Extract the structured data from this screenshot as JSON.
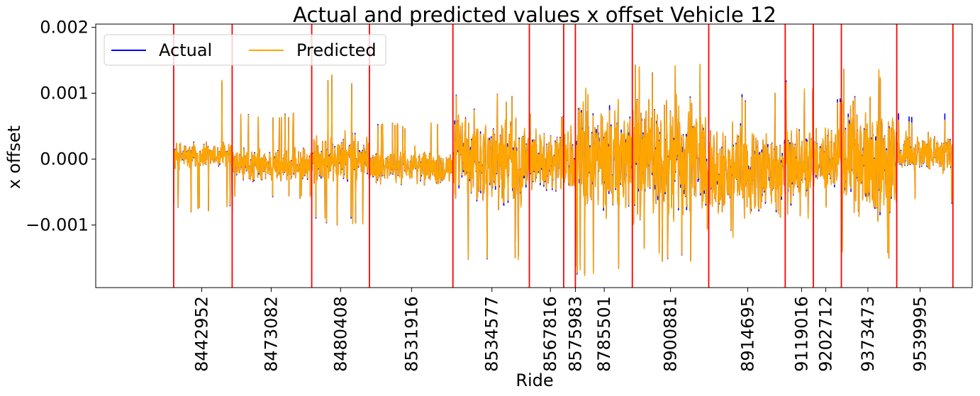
{
  "chart_data": {
    "type": "line",
    "title": "Actual and predicted values x offset Vehicle 12",
    "xlabel": "Ride",
    "ylabel": "x offset",
    "ylim": [
      -0.00195,
      0.00205
    ],
    "yticks": [
      {
        "value": 0.002,
        "label": "0.002"
      },
      {
        "value": 0.001,
        "label": "0.001"
      },
      {
        "value": 0.0,
        "label": "0.000"
      },
      {
        "value": -0.001,
        "label": "−0.001"
      }
    ],
    "xlim": [
      0,
      1000
    ],
    "xticks": [
      {
        "value": 85,
        "label": "8442952"
      },
      {
        "value": 174,
        "label": "8473082"
      },
      {
        "value": 263,
        "label": "8480408"
      },
      {
        "value": 354,
        "label": "8531916"
      },
      {
        "value": 457,
        "label": "8534577"
      },
      {
        "value": 532,
        "label": "8567816"
      },
      {
        "value": 564,
        "label": "8575983"
      },
      {
        "value": 601,
        "label": "8785501"
      },
      {
        "value": 686,
        "label": "8900881"
      },
      {
        "value": 785,
        "label": "8914695"
      },
      {
        "value": 854,
        "label": "9119016"
      },
      {
        "value": 885,
        "label": "9202712"
      },
      {
        "value": 939,
        "label": "9373473"
      },
      {
        "value": 1006,
        "label": "9539995"
      }
    ],
    "ride_boundaries": [
      49,
      124,
      226,
      300,
      407,
      505,
      549,
      564,
      637,
      735,
      833,
      869,
      905,
      976,
      1048
    ],
    "boundary_color": "#ff0000",
    "legend": {
      "placement": "top-left",
      "columns": 2
    },
    "series": [
      {
        "name": "Actual",
        "color": "#0000ff",
        "segments": [
          {
            "start": 49,
            "end": 124,
            "base": 5e-05,
            "amp": 0.00025,
            "spike_max": 0.0013,
            "spike_min": -0.0008
          },
          {
            "start": 124,
            "end": 226,
            "base": -0.0001,
            "amp": 0.0003,
            "spike_max": 0.0007,
            "spike_min": -0.0006
          },
          {
            "start": 226,
            "end": 300,
            "base": 0.0,
            "amp": 0.00045,
            "spike_max": 0.0013,
            "spike_min": -0.001
          },
          {
            "start": 300,
            "end": 407,
            "base": -0.0001,
            "amp": 0.0003,
            "spike_max": 0.00055,
            "spike_min": -0.0004
          },
          {
            "start": 407,
            "end": 505,
            "base": 0.0,
            "amp": 0.0008,
            "spike_max": 0.001,
            "spike_min": -0.0016
          },
          {
            "start": 505,
            "end": 549,
            "base": 0.0,
            "amp": 0.0005,
            "spike_max": 0.0007,
            "spike_min": -0.0005
          },
          {
            "start": 549,
            "end": 564,
            "base": 0.0,
            "amp": 0.0006,
            "spike_max": 0.0007,
            "spike_min": -0.0004
          },
          {
            "start": 564,
            "end": 637,
            "base": 0.0,
            "amp": 0.001,
            "spike_max": 0.0011,
            "spike_min": -0.0018
          },
          {
            "start": 637,
            "end": 735,
            "base": 0.0,
            "amp": 0.0011,
            "spike_max": 0.00155,
            "spike_min": -0.00155
          },
          {
            "start": 735,
            "end": 833,
            "base": -0.0002,
            "amp": 0.0008,
            "spike_max": 0.001,
            "spike_min": -0.0012
          },
          {
            "start": 833,
            "end": 869,
            "base": -0.0001,
            "amp": 0.0007,
            "spike_max": 0.0012,
            "spike_min": -0.0009
          },
          {
            "start": 869,
            "end": 905,
            "base": 0.0,
            "amp": 0.0006,
            "spike_max": 0.00095,
            "spike_min": -0.0008
          },
          {
            "start": 905,
            "end": 976,
            "base": 0.0,
            "amp": 0.0011,
            "spike_max": 0.0014,
            "spike_min": -0.0015
          },
          {
            "start": 976,
            "end": 1048,
            "base": 0.0001,
            "amp": 0.00035,
            "spike_max": 0.0007,
            "spike_min": -0.0007
          }
        ]
      },
      {
        "name": "Predicted",
        "color": "#ffa500",
        "segments": [
          {
            "start": 49,
            "end": 124,
            "base": 5e-05,
            "amp": 0.00025,
            "spike_max": 0.00135,
            "spike_min": -0.0008
          },
          {
            "start": 124,
            "end": 226,
            "base": -0.0001,
            "amp": 0.0003,
            "spike_max": 0.0007,
            "spike_min": -0.0006
          },
          {
            "start": 226,
            "end": 300,
            "base": 0.0,
            "amp": 0.00045,
            "spike_max": 0.0013,
            "spike_min": -0.001
          },
          {
            "start": 300,
            "end": 407,
            "base": -0.0001,
            "amp": 0.0003,
            "spike_max": 0.00055,
            "spike_min": -0.0004
          },
          {
            "start": 407,
            "end": 505,
            "base": 0.0,
            "amp": 0.0008,
            "spike_max": 0.001,
            "spike_min": -0.0016
          },
          {
            "start": 505,
            "end": 549,
            "base": 0.0,
            "amp": 0.0005,
            "spike_max": 0.0007,
            "spike_min": -0.0005
          },
          {
            "start": 549,
            "end": 564,
            "base": 0.0,
            "amp": 0.0006,
            "spike_max": 0.0007,
            "spike_min": -0.0004
          },
          {
            "start": 564,
            "end": 637,
            "base": 0.0,
            "amp": 0.001,
            "spike_max": 0.0011,
            "spike_min": -0.0018
          },
          {
            "start": 637,
            "end": 735,
            "base": 0.0,
            "amp": 0.0011,
            "spike_max": 0.00155,
            "spike_min": -0.00155
          },
          {
            "start": 735,
            "end": 833,
            "base": -0.0002,
            "amp": 0.0008,
            "spike_max": 0.001,
            "spike_min": -0.0012
          },
          {
            "start": 833,
            "end": 869,
            "base": -0.0001,
            "amp": 0.0007,
            "spike_max": 0.0012,
            "spike_min": -0.0009
          },
          {
            "start": 869,
            "end": 905,
            "base": 0.0,
            "amp": 0.0006,
            "spike_max": 0.0009,
            "spike_min": -0.0008
          },
          {
            "start": 905,
            "end": 976,
            "base": 0.0,
            "amp": 0.0011,
            "spike_max": 0.0014,
            "spike_min": -0.0015
          },
          {
            "start": 976,
            "end": 1048,
            "base": 0.0001,
            "amp": 0.00035,
            "spike_max": 0.0006,
            "spike_min": -0.0007
          }
        ]
      }
    ]
  }
}
